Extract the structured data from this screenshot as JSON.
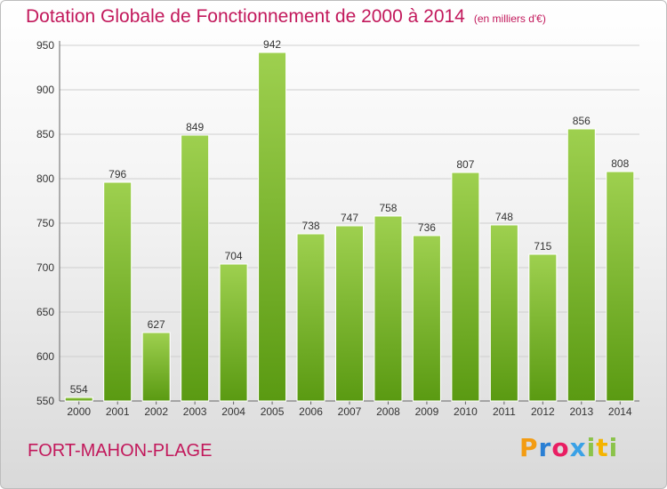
{
  "header": {
    "title": "Dotation Globale de Fonctionnement de 2000 à 2014",
    "subtitle": "(en milliers d'€)"
  },
  "footer": {
    "commune": "FORT-MAHON-PLAGE",
    "logo": [
      "P",
      "r",
      "o",
      "x",
      "i",
      "t",
      "i"
    ]
  },
  "colors": {
    "bar_top": "#9ed04f",
    "bar_bottom": "#5a9a12",
    "grid": "#cfcfcf",
    "title": "#c2185b"
  },
  "chart_data": {
    "type": "bar",
    "title": "Dotation Globale de Fonctionnement de 2000 à 2014",
    "subtitle": "(en milliers d'€)",
    "xlabel": "",
    "ylabel": "",
    "categories": [
      "2000",
      "2001",
      "2002",
      "2003",
      "2004",
      "2005",
      "2006",
      "2007",
      "2008",
      "2009",
      "2010",
      "2011",
      "2012",
      "2013",
      "2014"
    ],
    "values": [
      554,
      796,
      627,
      849,
      704,
      942,
      738,
      747,
      758,
      736,
      807,
      748,
      715,
      856,
      808
    ],
    "ylim": [
      550,
      950
    ],
    "yticks": [
      550,
      600,
      650,
      700,
      750,
      800,
      850,
      900,
      950
    ],
    "grid": true,
    "legend": "none"
  }
}
